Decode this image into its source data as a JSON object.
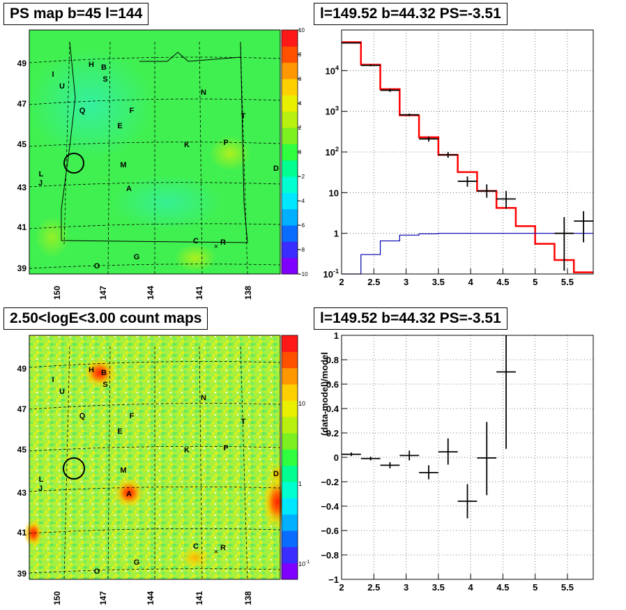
{
  "titles": {
    "ps_map": "PS map b=45 l=144",
    "spectrum": "l=149.52 b=44.32 PS=-3.51",
    "count_map": "2.50<logE<3.00 count maps",
    "residual": "l=149.52 b=44.32 PS=-3.51"
  },
  "colors": {
    "model_line": "#ff0000",
    "background_line": "#0000b0",
    "data_marker": "#000000",
    "ps_map_fill": "#40f050",
    "count_map_fill": "#a8f040"
  },
  "palette": [
    "#7f00ff",
    "#3a2dff",
    "#0a6bff",
    "#00b0ff",
    "#00e8ff",
    "#00ffd0",
    "#00ff90",
    "#30ff40",
    "#7cf020",
    "#b8f010",
    "#e8f000",
    "#ffd000",
    "#ff9800",
    "#ff5000",
    "#ff1818"
  ],
  "sky_maps": {
    "lat_labels": [
      "49",
      "47",
      "45",
      "43",
      "41",
      "39"
    ],
    "lon_labels": [
      "150",
      "147",
      "144",
      "141",
      "138"
    ],
    "sources": [
      "H",
      "B",
      "S",
      "I",
      "U",
      "Q",
      "F",
      "E",
      "N",
      "T",
      "K",
      "P",
      "D",
      "M",
      "L",
      "J",
      "A",
      "C",
      "R",
      "G",
      "O"
    ],
    "source_cross": "×"
  },
  "ps_colorbar": {
    "ticks": [
      "10",
      "8",
      "6",
      "4",
      "2",
      "0",
      "−2",
      "−4",
      "−6",
      "−8",
      "−10"
    ]
  },
  "count_colorbar": {
    "ticks": [
      "10",
      "1"
    ],
    "bottom_tick_base": "10",
    "bottom_tick_exp": "-1"
  },
  "chart_data": [
    {
      "type": "line",
      "name": "spectrum",
      "title": "l=149.52 b=44.32 PS=-3.51",
      "xlabel": "",
      "ylabel": "",
      "xlim": [
        2,
        5.9
      ],
      "ylim": [
        0.1,
        100000
      ],
      "yscale": "log",
      "grid": true,
      "x_ticks": [
        "2",
        "2.5",
        "3",
        "3.5",
        "4",
        "4.5",
        "5",
        "5.5"
      ],
      "y_ticks": [
        "10^4",
        "10^3",
        "10^2",
        "10",
        "1",
        "10^-1"
      ],
      "bin_edges": [
        2.0,
        2.3,
        2.6,
        2.9,
        3.2,
        3.5,
        3.8,
        4.1,
        4.4,
        4.7,
        5.0,
        5.3,
        5.6,
        5.9
      ],
      "series": [
        {
          "role": "model",
          "style": "step",
          "values": [
            50000,
            14000,
            3500,
            800,
            230,
            85,
            32,
            11,
            4.2,
            1.5,
            0.55,
            0.22,
            0.11
          ]
        },
        {
          "role": "background",
          "style": "step",
          "values": [
            0.1,
            0.3,
            0.65,
            0.9,
            0.97,
            1.0,
            1.0,
            1.0,
            1.0,
            1.0,
            1.0,
            1.0,
            1.0
          ]
        },
        {
          "role": "data",
          "style": "errorbar",
          "points": [
            {
              "x": 2.15,
              "y": 48000,
              "lo": 46500,
              "hi": 49500,
              "xerr": 0.15
            },
            {
              "x": 2.45,
              "y": 13500,
              "lo": 12800,
              "hi": 14200,
              "xerr": 0.15
            },
            {
              "x": 2.75,
              "y": 3300,
              "lo": 3000,
              "hi": 3600,
              "xerr": 0.15
            },
            {
              "x": 3.05,
              "y": 820,
              "lo": 760,
              "hi": 880,
              "xerr": 0.15
            },
            {
              "x": 3.35,
              "y": 210,
              "lo": 180,
              "hi": 240,
              "xerr": 0.15
            },
            {
              "x": 3.65,
              "y": 85,
              "lo": 72,
              "hi": 100,
              "xerr": 0.15
            },
            {
              "x": 3.95,
              "y": 19,
              "lo": 14,
              "hi": 25,
              "xerr": 0.15
            },
            {
              "x": 4.25,
              "y": 11,
              "lo": 7.5,
              "hi": 16,
              "xerr": 0.15
            },
            {
              "x": 4.55,
              "y": 7,
              "lo": 4,
              "hi": 11,
              "xerr": 0.15
            },
            {
              "x": 5.45,
              "y": 1,
              "lo": 0.12,
              "hi": 2.5,
              "xerr": 0.15
            },
            {
              "x": 5.75,
              "y": 2,
              "lo": 0.6,
              "hi": 3.5,
              "xerr": 0.15
            }
          ]
        }
      ]
    },
    {
      "type": "scatter",
      "name": "residual",
      "title": "l=149.52 b=44.32 PS=-3.51",
      "xlabel": "",
      "ylabel": "(data-model)/model",
      "xlim": [
        2,
        5.9
      ],
      "ylim": [
        -1,
        1
      ],
      "grid": true,
      "x_ticks": [
        "2",
        "2.5",
        "3",
        "3.5",
        "4",
        "4.5",
        "5",
        "5.5"
      ],
      "y_ticks": [
        "1",
        "0.8",
        "0.6",
        "0.4",
        "0.2",
        "0",
        "−0.2",
        "−0.4",
        "−0.6",
        "−0.8",
        "−1"
      ],
      "points": [
        {
          "x": 2.15,
          "y": 0.025,
          "lo": 0.01,
          "hi": 0.04,
          "xerr": 0.15
        },
        {
          "x": 2.45,
          "y": -0.01,
          "lo": -0.025,
          "hi": 0.005,
          "xerr": 0.15
        },
        {
          "x": 2.75,
          "y": -0.065,
          "lo": -0.09,
          "hi": -0.04,
          "xerr": 0.15
        },
        {
          "x": 3.05,
          "y": 0.015,
          "lo": -0.025,
          "hi": 0.055,
          "xerr": 0.15
        },
        {
          "x": 3.35,
          "y": -0.125,
          "lo": -0.18,
          "hi": -0.065,
          "xerr": 0.15
        },
        {
          "x": 3.65,
          "y": 0.045,
          "lo": -0.06,
          "hi": 0.155,
          "xerr": 0.15
        },
        {
          "x": 3.95,
          "y": -0.36,
          "lo": -0.5,
          "hi": -0.22,
          "xerr": 0.15
        },
        {
          "x": 4.25,
          "y": -0.005,
          "lo": -0.31,
          "hi": 0.29,
          "xerr": 0.15
        },
        {
          "x": 4.55,
          "y": 0.7,
          "lo": 0.07,
          "hi": 1.0,
          "xerr": 0.15
        }
      ]
    }
  ]
}
